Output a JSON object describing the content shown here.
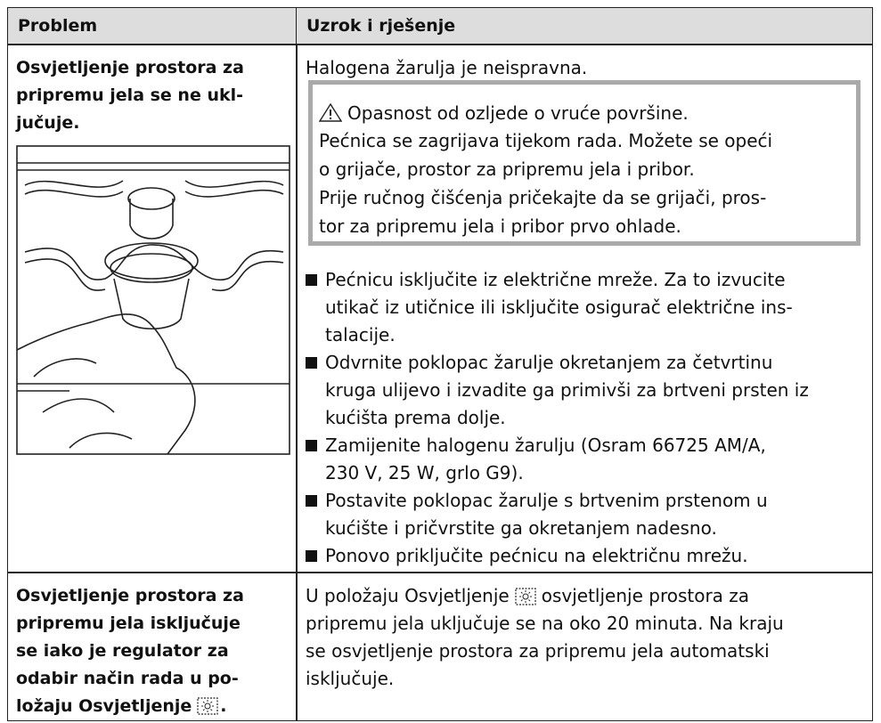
{
  "header": {
    "col1": "Problem",
    "col2": "Uzrok i rješenje"
  },
  "rows": [
    {
      "problem_lines": [
        "Osvjetljenje prostora za",
        "pripremu jela se ne ukl-",
        "jučuje."
      ],
      "cause": "Halogena žarulja je neispravna.",
      "warning": {
        "title": "Opasnost od ozljede o vruće površine.",
        "lines": [
          "Pećnica se zagrijava tijekom rada. Možete se opeći",
          "o grijače, prostor za pripremu jela i pribor.",
          "Prije ručnog čišćenja pričekajte da se grijači, pros-",
          "tor za pripremu jela i pribor prvo ohlade."
        ]
      },
      "steps": [
        [
          "Pećnicu isključite iz električne mreže. Za to izvucite",
          "utikač iz utičnice ili isključite osigurač električne ins-",
          "talacije."
        ],
        [
          "Odvrnite poklopac žarulje okretanjem za četvrtinu",
          "kruga ulijevo i izvadite ga primivši za brtveni prsten iz",
          "kućišta prema dolje."
        ],
        [
          "Zamijenite halogenu žarulju (Osram 66725 AM/A,",
          "230 V, 25 W, grlo G9)."
        ],
        [
          "Postavite poklopac žarulje s brtvenim prstenom u",
          "kućište i pričvrstite ga okretanjem nadesno."
        ],
        [
          "Ponovo priključite pećnicu na električnu mrežu."
        ]
      ]
    },
    {
      "problem_lines": [
        "Osvjetljenje prostora za",
        "pripremu jela isključuje",
        "se iako je regulator za",
        "odabir način rada u po-"
      ],
      "problem_last_line": "ložaju Osvjetljenje",
      "problem_last_punct": ".",
      "solution_first_before": "U položaju Osvjetljenje",
      "solution_first_after": "osvjetljenje prostora za",
      "solution_lines": [
        "pripremu jela uključuje se na oko 20 minuta. Na kraju",
        "se osvjetljenje prostora za pripremu jela automatski",
        "isključuje."
      ]
    }
  ]
}
